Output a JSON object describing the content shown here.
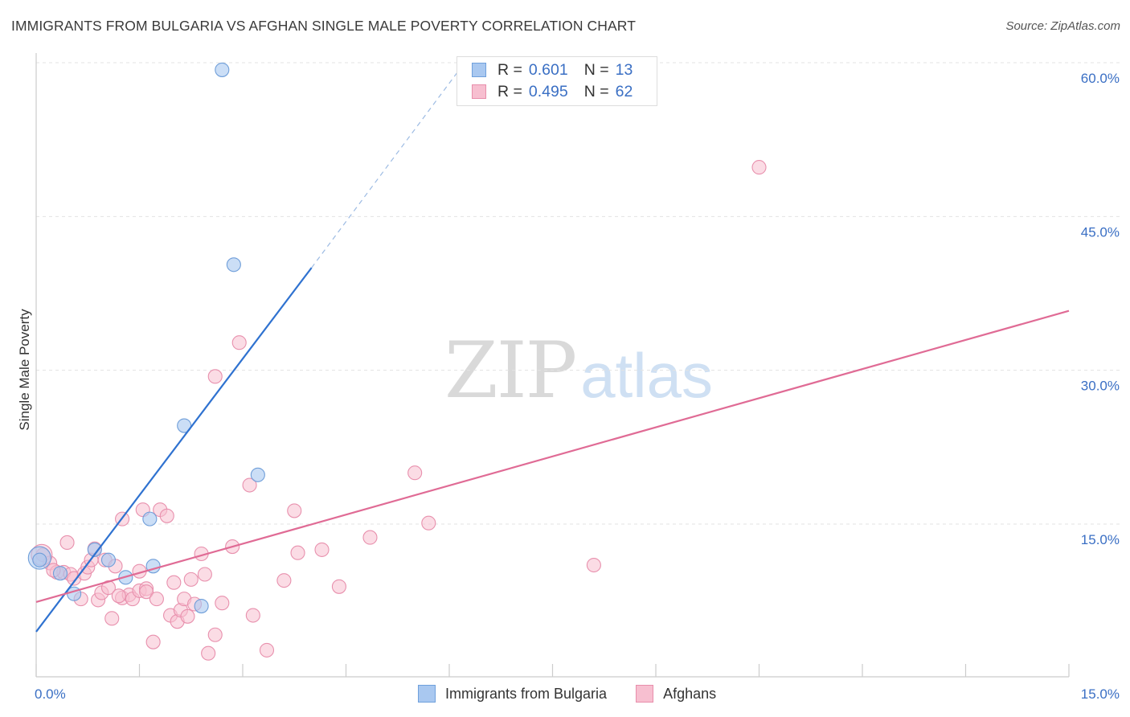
{
  "title": "IMMIGRANTS FROM BULGARIA VS AFGHAN SINGLE MALE POVERTY CORRELATION CHART",
  "source": "Source: ZipAtlas.com",
  "watermark": {
    "zip": "ZIP",
    "atlas": "atlas"
  },
  "legend": {
    "rows": [
      {
        "r_label": "R =",
        "r_value": "0.601",
        "n_label": "N =",
        "n_value": "13",
        "color": "#a9c8f0",
        "stroke": "#6fa0dc"
      },
      {
        "r_label": "R =",
        "r_value": "0.495",
        "n_label": "N =",
        "n_value": "62",
        "color": "#f7bfd0",
        "stroke": "#e88eab"
      }
    ]
  },
  "bottom_legend": {
    "series1": "Immigrants from Bulgaria",
    "series2": "Afghans"
  },
  "chart_data": {
    "type": "scatter",
    "title": "IMMIGRANTS FROM BULGARIA VS AFGHAN SINGLE MALE POVERTY CORRELATION CHART",
    "xlabel": "",
    "ylabel": "Single Male Poverty",
    "xlim": [
      0,
      15
    ],
    "ylim": [
      0,
      60
    ],
    "x_tick_labels": [
      "0.0%",
      "15.0%"
    ],
    "y_tick_labels": [
      "15.0%",
      "30.0%",
      "45.0%",
      "60.0%"
    ],
    "y_ticks": [
      15,
      30,
      45,
      60
    ],
    "colors": {
      "bulgaria": "#a9c8f0",
      "bulgaria_stroke": "#6f9ed9",
      "bulgaria_line": "#2f72d0",
      "afghans": "#f7bfd0",
      "afghans_stroke": "#e890ad",
      "afghans_line": "#e06b95"
    },
    "series": [
      {
        "name": "Immigrants from Bulgaria",
        "points": [
          [
            0.05,
            11.5
          ],
          [
            0.55,
            8.2
          ],
          [
            0.85,
            12.5
          ],
          [
            1.05,
            11.5
          ],
          [
            1.3,
            9.8
          ],
          [
            1.65,
            15.5
          ],
          [
            1.7,
            10.9
          ],
          [
            2.15,
            24.6
          ],
          [
            2.4,
            7.0
          ],
          [
            2.7,
            59.3
          ],
          [
            2.87,
            40.3
          ],
          [
            3.22,
            19.8
          ],
          [
            0.35,
            10.2
          ]
        ],
        "big_points": [
          [
            0.05,
            11.7
          ]
        ],
        "trend": {
          "x0": 0,
          "y0": 4.5,
          "x1": 4.0,
          "y1": 40.0,
          "dash_x1": 6.2,
          "dash_y1": 59.8
        }
      },
      {
        "name": "Afghans",
        "points": [
          [
            0.1,
            12.0
          ],
          [
            0.2,
            11.2
          ],
          [
            0.3,
            10.3
          ],
          [
            0.4,
            10.3
          ],
          [
            0.45,
            13.2
          ],
          [
            0.5,
            10.1
          ],
          [
            0.55,
            9.7
          ],
          [
            0.65,
            7.7
          ],
          [
            0.7,
            10.2
          ],
          [
            0.75,
            10.8
          ],
          [
            0.8,
            11.5
          ],
          [
            0.9,
            7.6
          ],
          [
            0.95,
            8.3
          ],
          [
            1.0,
            11.5
          ],
          [
            1.05,
            8.8
          ],
          [
            1.1,
            5.8
          ],
          [
            1.15,
            10.9
          ],
          [
            1.25,
            7.8
          ],
          [
            1.25,
            15.5
          ],
          [
            1.35,
            8.1
          ],
          [
            1.4,
            7.7
          ],
          [
            1.5,
            8.5
          ],
          [
            1.5,
            10.4
          ],
          [
            1.55,
            16.4
          ],
          [
            1.6,
            8.7
          ],
          [
            1.6,
            8.4
          ],
          [
            1.7,
            3.5
          ],
          [
            1.75,
            7.7
          ],
          [
            1.8,
            16.4
          ],
          [
            1.9,
            15.8
          ],
          [
            1.95,
            6.1
          ],
          [
            2.0,
            9.3
          ],
          [
            2.05,
            5.5
          ],
          [
            2.1,
            6.6
          ],
          [
            2.15,
            7.7
          ],
          [
            2.2,
            6.0
          ],
          [
            2.25,
            9.6
          ],
          [
            2.4,
            12.1
          ],
          [
            2.45,
            10.1
          ],
          [
            2.5,
            2.4
          ],
          [
            2.6,
            4.2
          ],
          [
            2.7,
            7.3
          ],
          [
            2.85,
            12.8
          ],
          [
            2.95,
            32.7
          ],
          [
            2.6,
            29.4
          ],
          [
            3.1,
            18.8
          ],
          [
            3.15,
            6.1
          ],
          [
            3.35,
            2.7
          ],
          [
            3.6,
            9.5
          ],
          [
            3.75,
            16.3
          ],
          [
            3.8,
            12.2
          ],
          [
            4.15,
            12.5
          ],
          [
            4.4,
            8.9
          ],
          [
            4.85,
            13.7
          ],
          [
            5.5,
            20.0
          ],
          [
            5.7,
            15.1
          ],
          [
            8.1,
            11.0
          ],
          [
            10.5,
            49.8
          ],
          [
            0.25,
            10.5
          ],
          [
            0.85,
            12.6
          ],
          [
            1.2,
            8.0
          ],
          [
            2.3,
            7.2
          ]
        ],
        "big_points": [
          [
            0.08,
            12.0
          ]
        ],
        "trend": {
          "x0": 0,
          "y0": 7.4,
          "x1": 15.0,
          "y1": 35.8
        }
      }
    ]
  }
}
